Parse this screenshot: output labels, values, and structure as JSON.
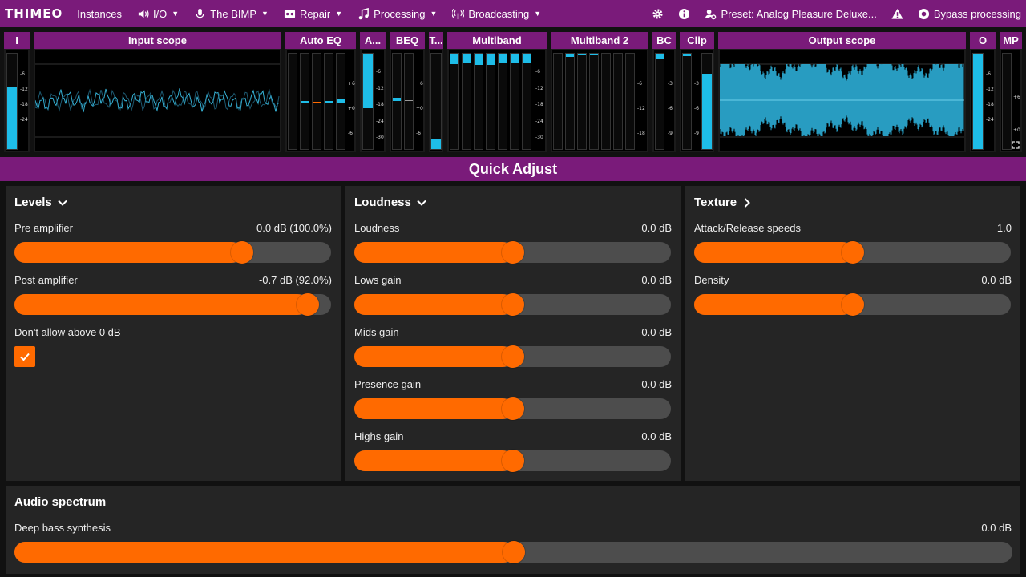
{
  "app": {
    "logo": "THIMEO"
  },
  "menu": {
    "instances": "Instances",
    "io": "I/O",
    "bimp": "The BIMP",
    "repair": "Repair",
    "processing": "Processing",
    "broadcasting": "Broadcasting",
    "preset": "Preset: Analog Pleasure Deluxe...",
    "bypass": "Bypass processing"
  },
  "meters": {
    "input_meter": "I",
    "input_scope": "Input scope",
    "auto_eq": "Auto EQ",
    "agc": "A...",
    "beq": "BEQ",
    "t": "T...",
    "multiband": "Multiband",
    "multiband2": "Multiband 2",
    "bc": "BC",
    "clip": "Clip",
    "output_scope": "Output scope",
    "output_meter": "O",
    "mp": "MP",
    "scale_input": [
      "-6",
      "-12",
      "-18",
      "-24"
    ],
    "scale_autoeq": [
      "+6",
      "+0",
      "-6"
    ],
    "scale_agc": [
      "-6",
      "-12",
      "-18",
      "-24",
      "-30"
    ],
    "scale_beq": [
      "+6",
      "+0",
      "-6"
    ],
    "scale_mb": [
      "-6",
      "-12",
      "-18",
      "-24",
      "-30"
    ],
    "scale_mb2": [
      "-6",
      "-12",
      "-18"
    ],
    "scale_bc": [
      "-3",
      "-6",
      "-9"
    ],
    "scale_clip": [
      "-3",
      "-6",
      "-9"
    ],
    "scale_out": [
      "-6",
      "-12",
      "-18",
      "-24"
    ],
    "scale_mp": [
      "+6",
      "+0"
    ]
  },
  "quick_adjust": {
    "title": "Quick Adjust"
  },
  "levels": {
    "title": "Levels",
    "pre_label": "Pre amplifier",
    "pre_value": "0.0 dB (100.0%)",
    "pre_fraction": 0.735,
    "post_label": "Post amplifier",
    "post_value": "-0.7 dB (92.0%)",
    "post_fraction": 0.958,
    "dont_allow_label": "Don't allow above 0 dB",
    "dont_allow_checked": true
  },
  "loudness": {
    "title": "Loudness",
    "controls": [
      {
        "label": "Loudness",
        "value": "0.0 dB",
        "fraction": 0.5
      },
      {
        "label": "Lows gain",
        "value": "0.0 dB",
        "fraction": 0.5
      },
      {
        "label": "Mids gain",
        "value": "0.0 dB",
        "fraction": 0.5
      },
      {
        "label": "Presence gain",
        "value": "0.0 dB",
        "fraction": 0.5
      },
      {
        "label": "Highs gain",
        "value": "0.0 dB",
        "fraction": 0.5
      }
    ]
  },
  "texture": {
    "title": "Texture",
    "controls": [
      {
        "label": "Attack/Release speeds",
        "value": "1.0",
        "fraction": 0.5
      },
      {
        "label": "Density",
        "value": "0.0 dB",
        "fraction": 0.5
      }
    ]
  },
  "audio_spectrum": {
    "title": "Audio spectrum",
    "deep_bass_label": "Deep bass synthesis",
    "deep_bass_value": "0.0 dB",
    "deep_bass_fraction": 0.5
  },
  "colors": {
    "accent": "#7a1b7a",
    "slider": "#ff6a00",
    "meter": "#1ebde8"
  }
}
